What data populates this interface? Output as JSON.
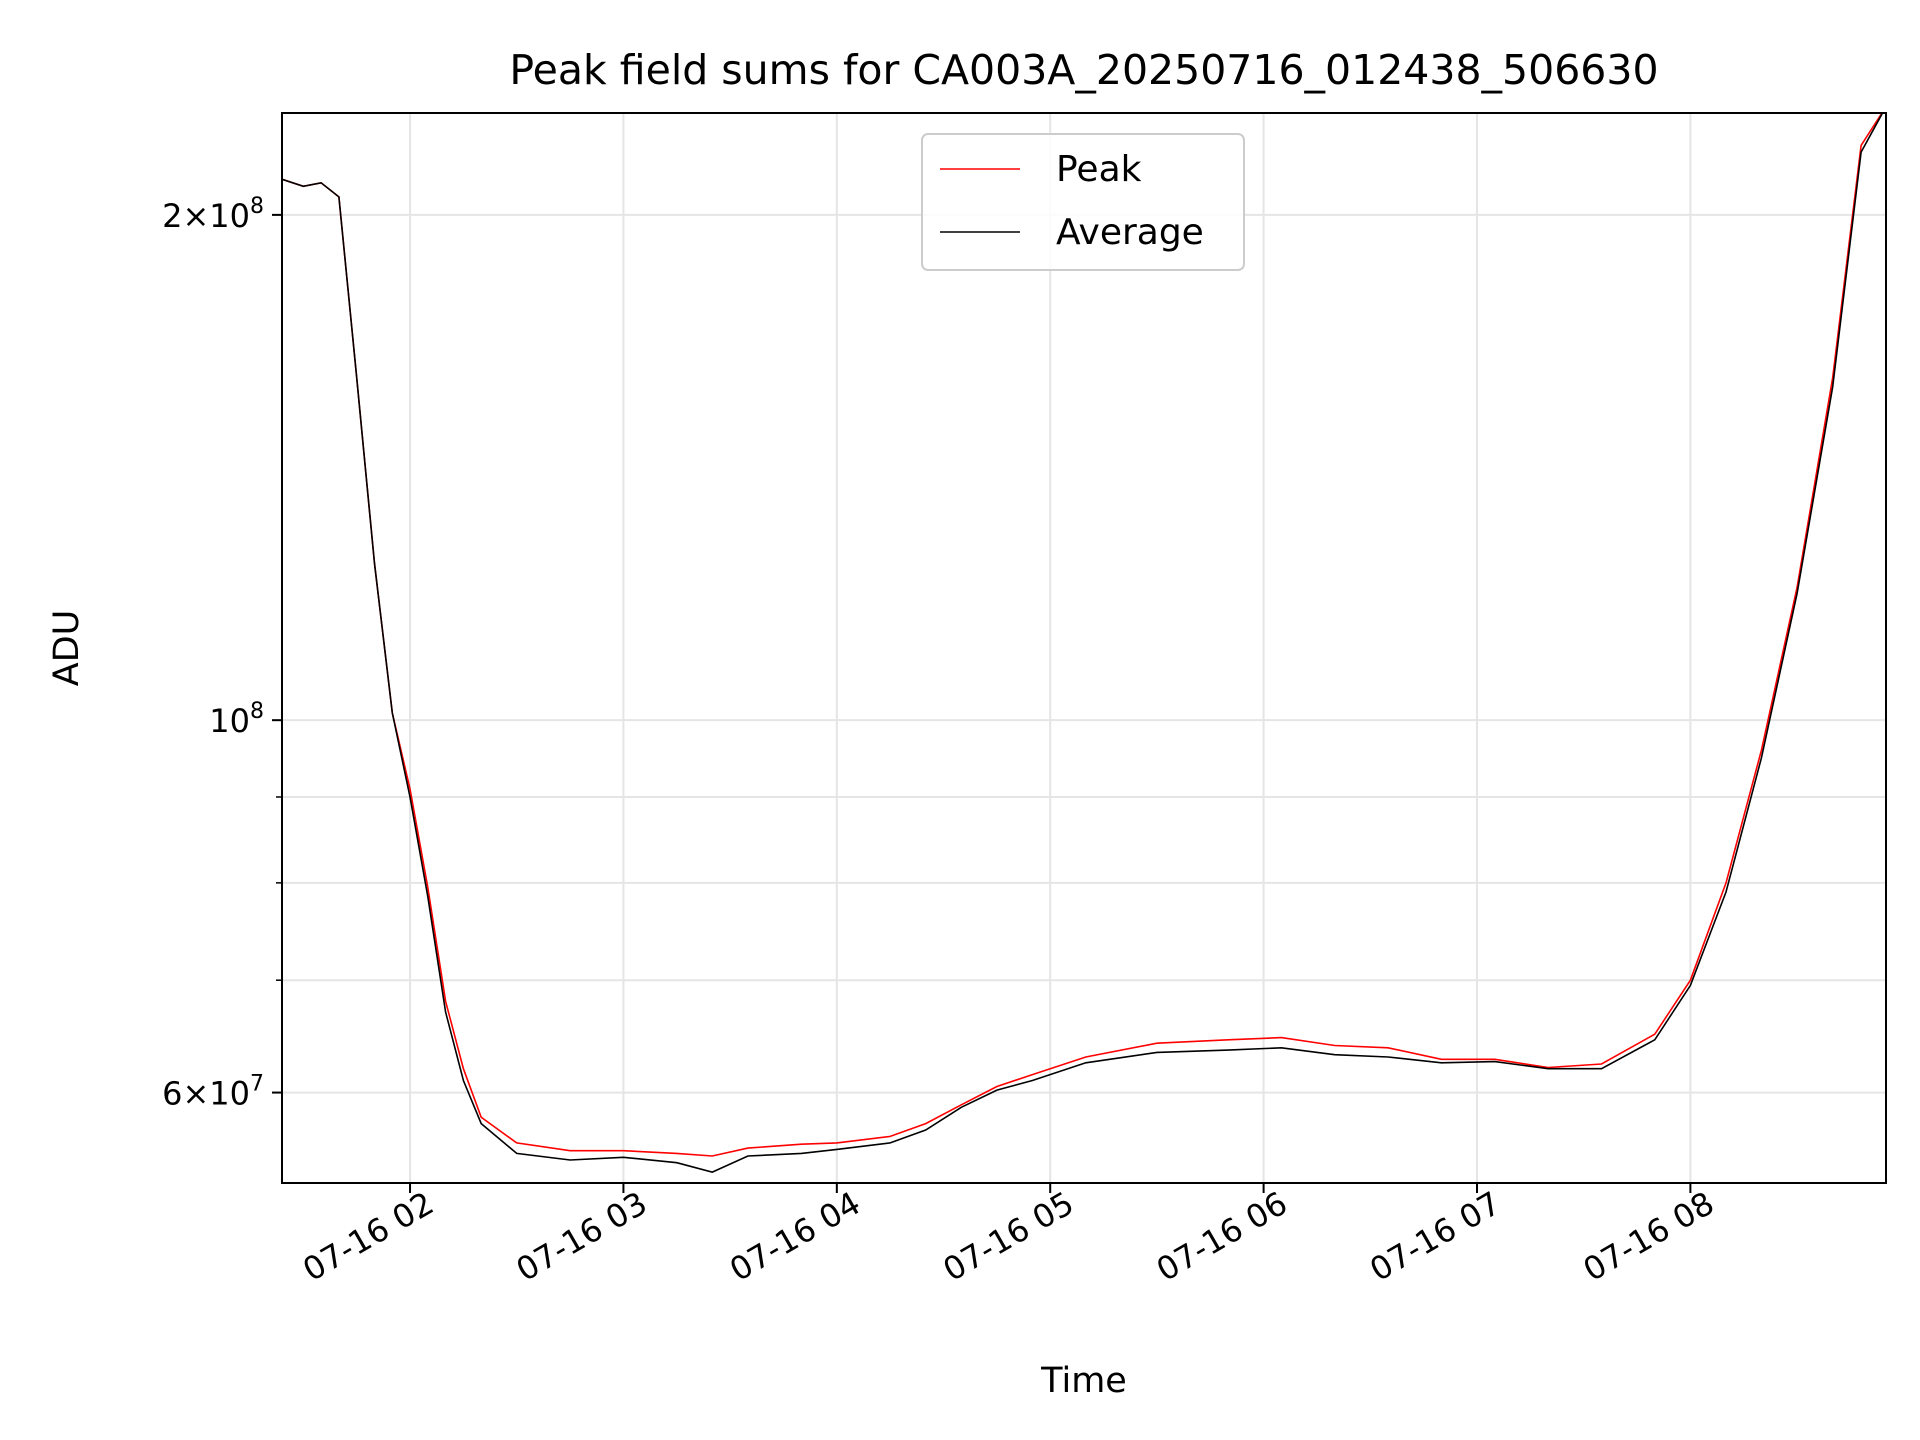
{
  "chart_data": {
    "type": "line",
    "title": "Peak field sums for CA003A_20250716_012438_506630",
    "xlabel": "Time",
    "ylabel": "ADU",
    "yscale": "log",
    "ylim": [
      53000000,
      230000000
    ],
    "xlim": [
      "2025-07-16T01:24",
      "2025-07-16T08:55"
    ],
    "grid": true,
    "legend_position": "upper center",
    "x_ticks": [
      "07-16 02",
      "07-16 03",
      "07-16 04",
      "07-16 05",
      "07-16 06",
      "07-16 07",
      "07-16 08"
    ],
    "y_major_ticks": [
      {
        "value": 60000000,
        "mantissa": "6",
        "exp": "7"
      },
      {
        "value": 100000000,
        "mantissa": "",
        "exp": "8"
      },
      {
        "value": 200000000,
        "mantissa": "2",
        "exp": "8"
      }
    ],
    "y_minor_ticks": [
      70000000,
      80000000,
      90000000
    ],
    "series": [
      {
        "name": "Peak",
        "color": "#ff0000",
        "points": [
          [
            "2025-07-16T01:24",
            210000000
          ],
          [
            "2025-07-16T01:30",
            208000000
          ],
          [
            "2025-07-16T01:35",
            209000000
          ],
          [
            "2025-07-16T01:40",
            205000000
          ],
          [
            "2025-07-16T01:45",
            160000000
          ],
          [
            "2025-07-16T01:50",
            124000000
          ],
          [
            "2025-07-16T01:55",
            101000000
          ],
          [
            "2025-07-16T02:00",
            91000000
          ],
          [
            "2025-07-16T02:05",
            79500000
          ],
          [
            "2025-07-16T02:10",
            68000000
          ],
          [
            "2025-07-16T02:15",
            62000000
          ],
          [
            "2025-07-16T02:20",
            58000000
          ],
          [
            "2025-07-16T02:30",
            56000000
          ],
          [
            "2025-07-16T02:45",
            55400000
          ],
          [
            "2025-07-16T03:00",
            55400000
          ],
          [
            "2025-07-16T03:15",
            55200000
          ],
          [
            "2025-07-16T03:25",
            55000000
          ],
          [
            "2025-07-16T03:35",
            55600000
          ],
          [
            "2025-07-16T03:50",
            55900000
          ],
          [
            "2025-07-16T04:00",
            56000000
          ],
          [
            "2025-07-16T04:15",
            56500000
          ],
          [
            "2025-07-16T04:25",
            57500000
          ],
          [
            "2025-07-16T04:35",
            59000000
          ],
          [
            "2025-07-16T04:45",
            60500000
          ],
          [
            "2025-07-16T04:55",
            61500000
          ],
          [
            "2025-07-16T05:10",
            63000000
          ],
          [
            "2025-07-16T05:30",
            64200000
          ],
          [
            "2025-07-16T05:50",
            64500000
          ],
          [
            "2025-07-16T06:05",
            64700000
          ],
          [
            "2025-07-16T06:20",
            64000000
          ],
          [
            "2025-07-16T06:35",
            63800000
          ],
          [
            "2025-07-16T06:50",
            62800000
          ],
          [
            "2025-07-16T07:05",
            62800000
          ],
          [
            "2025-07-16T07:20",
            62100000
          ],
          [
            "2025-07-16T07:35",
            62400000
          ],
          [
            "2025-07-16T07:50",
            65000000
          ],
          [
            "2025-07-16T08:00",
            70000000
          ],
          [
            "2025-07-16T08:10",
            80000000
          ],
          [
            "2025-07-16T08:20",
            96000000
          ],
          [
            "2025-07-16T08:30",
            120000000
          ],
          [
            "2025-07-16T08:40",
            160000000
          ],
          [
            "2025-07-16T08:48",
            220000000
          ],
          [
            "2025-07-16T08:55",
            232000000
          ]
        ]
      },
      {
        "name": "Average",
        "color": "#000000",
        "points": [
          [
            "2025-07-16T01:24",
            210000000
          ],
          [
            "2025-07-16T01:30",
            208000000
          ],
          [
            "2025-07-16T01:35",
            209000000
          ],
          [
            "2025-07-16T01:40",
            205000000
          ],
          [
            "2025-07-16T01:45",
            160000000
          ],
          [
            "2025-07-16T01:50",
            124000000
          ],
          [
            "2025-07-16T01:55",
            101000000
          ],
          [
            "2025-07-16T02:00",
            90000000
          ],
          [
            "2025-07-16T02:05",
            78500000
          ],
          [
            "2025-07-16T02:10",
            67000000
          ],
          [
            "2025-07-16T02:15",
            61000000
          ],
          [
            "2025-07-16T02:20",
            57500000
          ],
          [
            "2025-07-16T02:30",
            55200000
          ],
          [
            "2025-07-16T02:45",
            54700000
          ],
          [
            "2025-07-16T03:00",
            54900000
          ],
          [
            "2025-07-16T03:15",
            54500000
          ],
          [
            "2025-07-16T03:25",
            53800000
          ],
          [
            "2025-07-16T03:35",
            55000000
          ],
          [
            "2025-07-16T03:50",
            55200000
          ],
          [
            "2025-07-16T04:00",
            55500000
          ],
          [
            "2025-07-16T04:15",
            56000000
          ],
          [
            "2025-07-16T04:25",
            57000000
          ],
          [
            "2025-07-16T04:35",
            58800000
          ],
          [
            "2025-07-16T04:45",
            60200000
          ],
          [
            "2025-07-16T04:55",
            61000000
          ],
          [
            "2025-07-16T05:10",
            62500000
          ],
          [
            "2025-07-16T05:30",
            63400000
          ],
          [
            "2025-07-16T05:50",
            63600000
          ],
          [
            "2025-07-16T06:05",
            63800000
          ],
          [
            "2025-07-16T06:20",
            63200000
          ],
          [
            "2025-07-16T06:35",
            63000000
          ],
          [
            "2025-07-16T06:50",
            62500000
          ],
          [
            "2025-07-16T07:05",
            62600000
          ],
          [
            "2025-07-16T07:20",
            62000000
          ],
          [
            "2025-07-16T07:35",
            62000000
          ],
          [
            "2025-07-16T07:50",
            64500000
          ],
          [
            "2025-07-16T08:00",
            69500000
          ],
          [
            "2025-07-16T08:10",
            79000000
          ],
          [
            "2025-07-16T08:20",
            95000000
          ],
          [
            "2025-07-16T08:30",
            119000000
          ],
          [
            "2025-07-16T08:40",
            158000000
          ],
          [
            "2025-07-16T08:48",
            218000000
          ],
          [
            "2025-07-16T08:55",
            232000000
          ]
        ]
      }
    ]
  }
}
